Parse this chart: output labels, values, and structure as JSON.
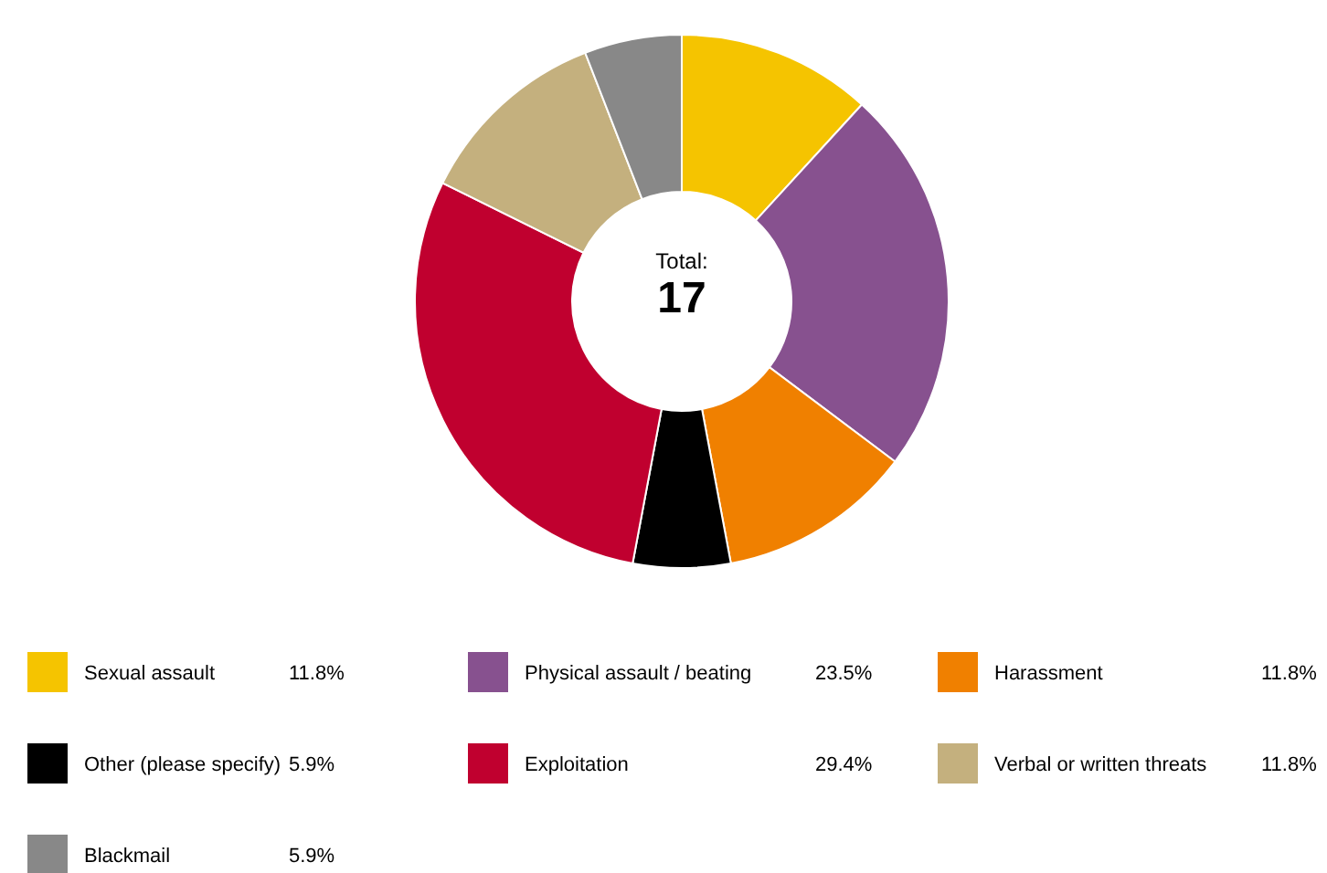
{
  "chart_data": {
    "type": "donut",
    "categories": [
      "Sexual assault",
      "Physical assault / beating",
      "Harassment",
      "Other (please specify)",
      "Exploitation",
      "Verbal or written threats",
      "Blackmail"
    ],
    "values": [
      11.8,
      23.5,
      11.8,
      5.9,
      29.4,
      11.8,
      5.9
    ],
    "colors": [
      "#f5c400",
      "#87518f",
      "#f08000",
      "#000000",
      "#c0002f",
      "#c4b07e",
      "#888888"
    ],
    "value_labels": [
      "11.8%",
      "23.5%",
      "11.8%",
      "5.9%",
      "29.4%",
      "11.8%",
      "5.9%"
    ],
    "annotations": [
      "Total:",
      "17"
    ],
    "legend": "bottom"
  }
}
